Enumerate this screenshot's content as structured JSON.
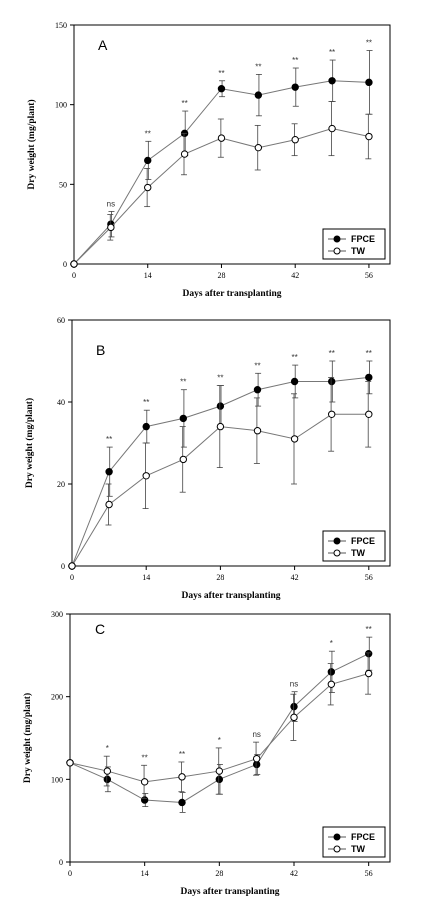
{
  "chart_data": [
    {
      "type": "line",
      "panel_label": "A",
      "xlabel": "Days after transplanting",
      "ylabel": "Dry weight (mg/plant)",
      "xlim": [
        0,
        60
      ],
      "ylim": [
        0,
        150
      ],
      "xticks": [
        0,
        14,
        28,
        42,
        56
      ],
      "yticks": [
        0,
        50,
        100,
        150
      ],
      "legend_position": "bottom-right",
      "x": [
        0,
        7,
        14,
        21,
        28,
        35,
        42,
        49,
        56
      ],
      "series": [
        {
          "name": "FPCE",
          "marker": "filled-circle",
          "values": [
            0,
            25,
            65,
            82,
            110,
            106,
            111,
            115,
            114
          ],
          "errors": [
            0,
            8,
            12,
            14,
            5,
            13,
            12,
            13,
            20
          ]
        },
        {
          "name": "TW",
          "marker": "open-circle",
          "values": [
            0,
            23,
            48,
            69,
            79,
            73,
            78,
            85,
            80
          ],
          "errors": [
            0,
            8,
            12,
            13,
            12,
            14,
            10,
            17,
            14
          ]
        }
      ],
      "significance": [
        "",
        "ns",
        "**",
        "**",
        "**",
        "**",
        "**",
        "**",
        "**"
      ]
    },
    {
      "type": "line",
      "panel_label": "B",
      "xlabel": "Days after transplanting",
      "ylabel": "Dry weight (mg/plant)",
      "xlim": [
        0,
        60
      ],
      "ylim": [
        0,
        60
      ],
      "xticks": [
        0,
        14,
        28,
        42,
        56
      ],
      "yticks": [
        0,
        20,
        40,
        60
      ],
      "legend_position": "bottom-right",
      "x": [
        0,
        7,
        14,
        21,
        28,
        35,
        42,
        49,
        56
      ],
      "series": [
        {
          "name": "FPCE",
          "marker": "filled-circle",
          "values": [
            0,
            23,
            34,
            36,
            39,
            43,
            45,
            45,
            46
          ],
          "errors": [
            0,
            6,
            4,
            7,
            5,
            4,
            4,
            5,
            4
          ]
        },
        {
          "name": "TW",
          "marker": "open-circle",
          "values": [
            0,
            15,
            22,
            26,
            34,
            33,
            31,
            37,
            37
          ],
          "errors": [
            0,
            5,
            8,
            8,
            10,
            8,
            11,
            9,
            8
          ]
        }
      ],
      "significance": [
        "",
        "**",
        "**",
        "**",
        "**",
        "**",
        "**",
        "**",
        "**"
      ]
    },
    {
      "type": "line",
      "panel_label": "C",
      "xlabel": "Days after transplanting",
      "ylabel": "Dry weight (mg/plant)",
      "xlim": [
        0,
        60
      ],
      "ylim": [
        0,
        300
      ],
      "xticks": [
        0,
        14,
        28,
        42,
        56
      ],
      "yticks": [
        0,
        100,
        200,
        300
      ],
      "legend_position": "bottom-right",
      "x": [
        0,
        7,
        14,
        21,
        28,
        35,
        42,
        49,
        56
      ],
      "series": [
        {
          "name": "FPCE",
          "marker": "filled-circle",
          "values": [
            120,
            100,
            75,
            72,
            100,
            118,
            188,
            230,
            252
          ],
          "errors": [
            0,
            15,
            8,
            12,
            18,
            12,
            18,
            25,
            20
          ]
        },
        {
          "name": "TW",
          "marker": "open-circle",
          "values": [
            120,
            110,
            97,
            103,
            110,
            125,
            175,
            215,
            228
          ],
          "errors": [
            0,
            18,
            20,
            18,
            28,
            20,
            28,
            25,
            25
          ]
        }
      ],
      "significance": [
        "",
        "*",
        "**",
        "**",
        "*",
        "ns",
        "ns",
        "*",
        "**"
      ]
    }
  ]
}
